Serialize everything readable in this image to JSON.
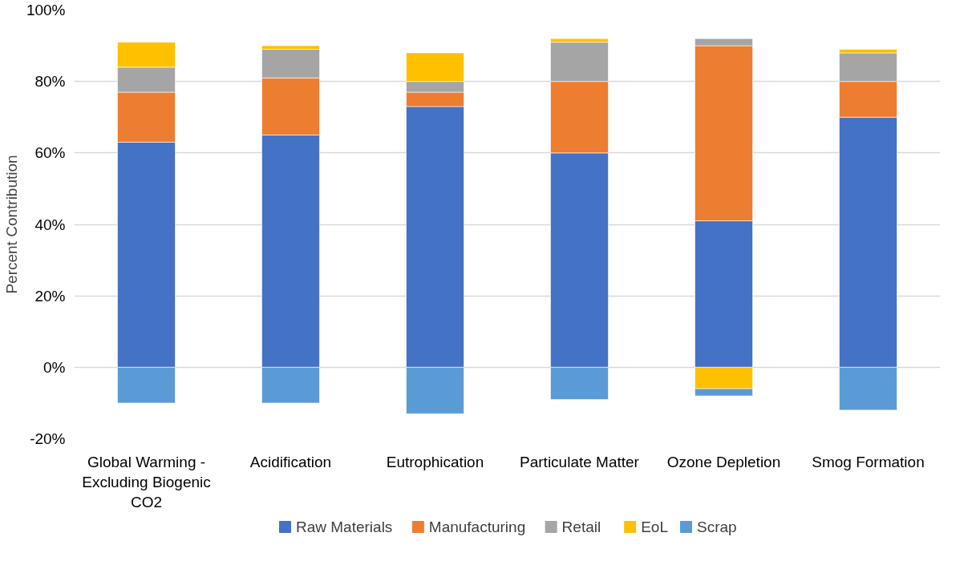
{
  "chart_data": {
    "type": "bar",
    "stacked": true,
    "ylabel": "Percent Contribution",
    "categories": [
      "Global Warming - Excluding Biogenic CO2",
      "Acidification",
      "Eutrophication",
      "Particulate Matter",
      "Ozone Depletion",
      "Smog Formation"
    ],
    "series": [
      {
        "name": "Raw Materials",
        "color": "#4472c4",
        "values": [
          63,
          65,
          73,
          60,
          41,
          70
        ]
      },
      {
        "name": "Manufacturing",
        "color": "#ed7d31",
        "values": [
          14,
          16,
          4,
          20,
          49,
          10
        ]
      },
      {
        "name": "Retail",
        "color": "#a5a5a5",
        "values": [
          7,
          8,
          3,
          11,
          2,
          8
        ]
      },
      {
        "name": "EoL",
        "color": "#ffc000",
        "values": [
          7,
          1,
          8,
          1,
          -6,
          1
        ]
      },
      {
        "name": "Scrap",
        "color": "#5b9bd5",
        "values": [
          -10,
          -10,
          -13,
          -9,
          -2,
          -12
        ]
      }
    ],
    "ylim": [
      -20,
      100
    ],
    "yticks": [
      {
        "value": -20,
        "label": "-20%"
      },
      {
        "value": 0,
        "label": "0%"
      },
      {
        "value": 20,
        "label": "20%"
      },
      {
        "value": 40,
        "label": "40%"
      },
      {
        "value": 60,
        "label": "60%"
      },
      {
        "value": 80,
        "label": "80%"
      },
      {
        "value": 100,
        "label": "100%"
      }
    ],
    "grid": "y",
    "legend": "bottom"
  }
}
